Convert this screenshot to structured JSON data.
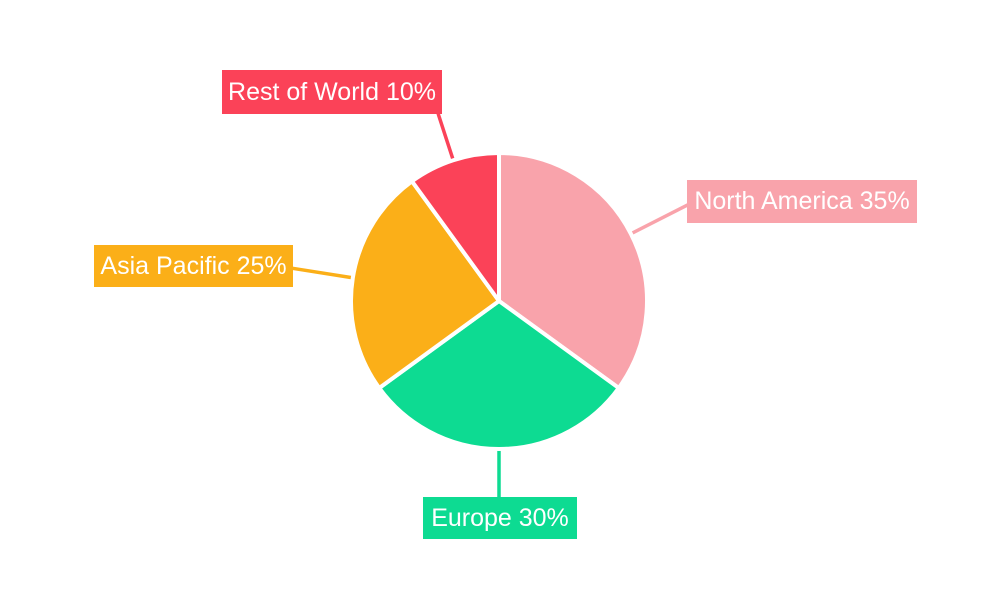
{
  "page": {
    "background": "#FFFFFF"
  },
  "chart_data": {
    "type": "pie",
    "title": "",
    "categories": [
      "North America",
      "Europe",
      "Asia Pacific",
      "Rest of World"
    ],
    "values": [
      35,
      30,
      25,
      10
    ],
    "value_unit": "%",
    "colors": [
      "#F9A3AB",
      "#0DDB92",
      "#FBAF18",
      "#FB4258"
    ],
    "label_text_color": "#FFFFFF",
    "start_angle": "12-oclock-clockwise",
    "legend_position": "none",
    "label_style": "callout-boxes-with-leader-lines",
    "callouts": [
      {
        "text": "North America 35%",
        "color": "#F9A3AB",
        "position": "right"
      },
      {
        "text": "Europe 30%",
        "color": "#0DDB92",
        "position": "bottom"
      },
      {
        "text": "Asia Pacific 25%",
        "color": "#FBAF18",
        "position": "left"
      },
      {
        "text": "Rest of World 10%",
        "color": "#FB4258",
        "position": "top-left"
      }
    ]
  }
}
